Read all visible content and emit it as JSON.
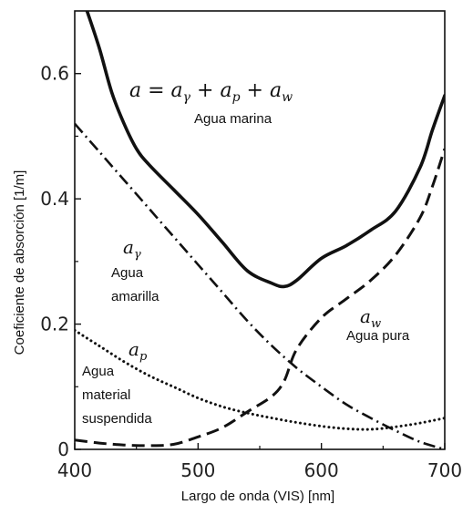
{
  "chart_data": {
    "type": "line",
    "title": "",
    "xlabel": "Largo de onda (VIS) [nm]",
    "ylabel": "Coeficiente de absorción [1/m]",
    "xlim": [
      400,
      700
    ],
    "ylim": [
      0,
      0.7
    ],
    "x_ticks": [
      "400",
      "500",
      "600",
      "700"
    ],
    "y_ticks": [
      "0",
      "0.2",
      "0.4",
      "0.6"
    ],
    "grid": false,
    "legend": "none",
    "series": [
      {
        "name": "a = aγ + ap + aw",
        "style": "solid",
        "x": [
          410,
          420,
          430,
          440,
          450,
          460,
          480,
          500,
          520,
          540,
          560,
          570,
          580,
          600,
          620,
          640,
          660,
          680,
          690,
          700
        ],
        "y": [
          0.7,
          0.64,
          0.57,
          0.52,
          0.48,
          0.455,
          0.415,
          0.375,
          0.33,
          0.285,
          0.265,
          0.26,
          0.27,
          0.305,
          0.325,
          0.35,
          0.38,
          0.45,
          0.51,
          0.565
        ]
      },
      {
        "name": "aγ",
        "style": "dash-dot",
        "x": [
          400,
          420,
          440,
          460,
          480,
          500,
          520,
          540,
          560,
          580,
          600,
          620,
          640,
          660,
          680,
          700
        ],
        "y": [
          0.52,
          0.475,
          0.43,
          0.385,
          0.34,
          0.295,
          0.25,
          0.205,
          0.165,
          0.13,
          0.1,
          0.072,
          0.05,
          0.03,
          0.012,
          0.0
        ]
      },
      {
        "name": "ap",
        "style": "dotted",
        "x": [
          400,
          420,
          440,
          460,
          480,
          500,
          520,
          540,
          560,
          580,
          600,
          620,
          640,
          660,
          680,
          700
        ],
        "y": [
          0.19,
          0.165,
          0.14,
          0.118,
          0.1,
          0.082,
          0.068,
          0.058,
          0.05,
          0.043,
          0.037,
          0.033,
          0.032,
          0.036,
          0.042,
          0.05
        ]
      },
      {
        "name": "aw",
        "style": "dashed",
        "x": [
          400,
          420,
          440,
          460,
          480,
          500,
          520,
          540,
          560,
          570,
          580,
          600,
          620,
          640,
          660,
          680,
          690,
          700
        ],
        "y": [
          0.015,
          0.01,
          0.007,
          0.006,
          0.008,
          0.02,
          0.035,
          0.06,
          0.085,
          0.11,
          0.16,
          0.21,
          0.24,
          0.27,
          0.31,
          0.37,
          0.42,
          0.48
        ]
      }
    ],
    "annotations": [
      {
        "id": "total_formula",
        "parts": [
          "a = a",
          "γ",
          " + a",
          "p",
          " + a",
          "w"
        ]
      },
      {
        "id": "total_label",
        "text": "Agua marina"
      },
      {
        "id": "yellow_symbol",
        "parts": [
          "a",
          "γ"
        ]
      },
      {
        "id": "yellow_label_1",
        "text": "Agua"
      },
      {
        "id": "yellow_label_2",
        "text": "amarilla"
      },
      {
        "id": "particle_symbol",
        "parts": [
          "a",
          "p"
        ]
      },
      {
        "id": "particle_label_1",
        "text": "Agua"
      },
      {
        "id": "particle_label_2",
        "text": "material"
      },
      {
        "id": "particle_label_3",
        "text": "suspendida"
      },
      {
        "id": "water_symbol",
        "parts": [
          "a",
          "w"
        ]
      },
      {
        "id": "water_label",
        "text": "Agua pura"
      }
    ]
  }
}
